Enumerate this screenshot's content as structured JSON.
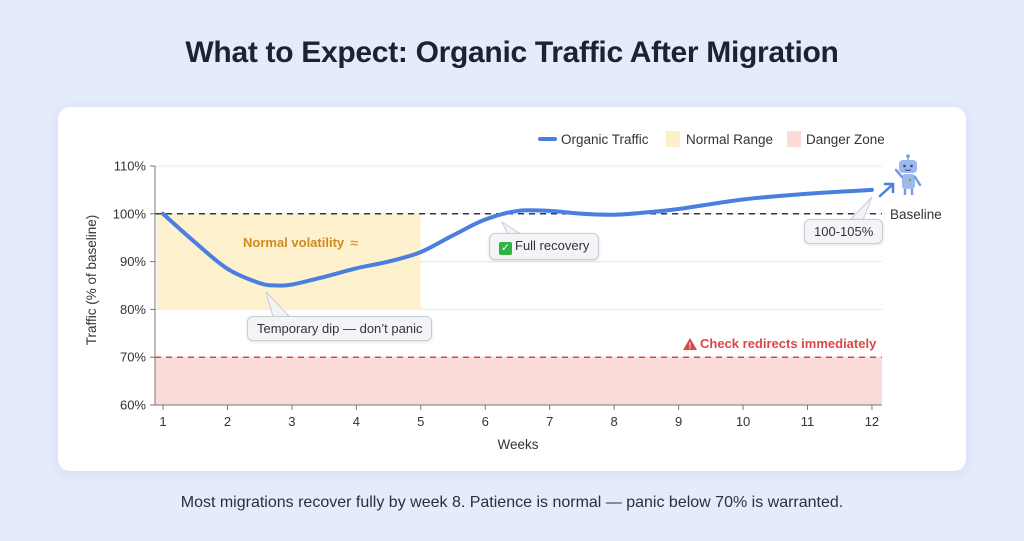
{
  "title": "What to Expect: Organic Traffic After Migration",
  "caption": "Most migrations recover fully by week 8. Patience is normal — panic below 70% is warranted.",
  "colors": {
    "line": "#4a7fe0",
    "normal_range": "#fdf0c9",
    "danger_zone": "#fbdada",
    "danger_line": "#d94848",
    "baseline": "#2f3a4d",
    "normal_label": "#d08a1e"
  },
  "chart_data": {
    "type": "line",
    "title": "What to Expect: Organic Traffic After Migration",
    "xlabel": "Weeks",
    "ylabel": "Traffic (% of baseline)",
    "x_ticks": [
      "1",
      "2",
      "3",
      "4",
      "5",
      "6",
      "7",
      "8",
      "9",
      "10",
      "11",
      "12"
    ],
    "y_ticks": [
      "60%",
      "70%",
      "80%",
      "90%",
      "100%",
      "110%"
    ],
    "xlim": [
      0.9,
      12.1
    ],
    "ylim": [
      60,
      110
    ],
    "grid": "horizontal",
    "legend_position": "top-right",
    "legend": [
      "Organic Traffic",
      "Normal Range",
      "Danger Zone"
    ],
    "series": [
      {
        "name": "Organic Traffic",
        "x": [
          1,
          1.5,
          2,
          2.5,
          2.75,
          3,
          3.5,
          4,
          4.5,
          5,
          5.5,
          6,
          6.5,
          7,
          7.5,
          8,
          8.5,
          9,
          10,
          11,
          12
        ],
        "values": [
          100,
          94,
          88.5,
          85.5,
          85,
          85.2,
          86.8,
          88.6,
          90,
          92,
          95.5,
          98.8,
          100.6,
          100.6,
          100,
          99.8,
          100.3,
          101,
          103,
          104.2,
          105
        ]
      }
    ],
    "bands": [
      {
        "name": "Normal Range",
        "x_range": [
          1,
          5
        ],
        "y_range": [
          80,
          100
        ]
      },
      {
        "name": "Danger Zone",
        "x_range": [
          1,
          12
        ],
        "y_range": [
          60,
          70
        ]
      }
    ],
    "reference_lines": [
      {
        "name": "Baseline",
        "y": 100,
        "style": "dashed"
      },
      {
        "name": "Danger threshold",
        "y": 70,
        "style": "dashed"
      }
    ],
    "annotations": [
      {
        "text": "Normal volatility ≈",
        "x": 3,
        "y": 95
      },
      {
        "text": "Temporary dip — don’t panic",
        "x": 2.6,
        "y": 85
      },
      {
        "text": "Full recovery",
        "x": 6.5,
        "y": 100.5
      },
      {
        "text": "100-105%",
        "x": 12,
        "y": 105
      },
      {
        "text": "Baseline",
        "x": 12,
        "y": 100
      },
      {
        "text": "Check redirects immediately",
        "x": 10.5,
        "y": 70
      }
    ]
  },
  "annotations": {
    "normal_volatility": "Normal volatility",
    "approx_symbol": "≈",
    "temporary_dip": "Temporary dip — don’t panic",
    "full_recovery": "Full recovery",
    "range_label": "100-105%",
    "baseline": "Baseline",
    "check_redirects": "Check redirects immediately",
    "warning_glyph": "▲",
    "check_glyph": "✓"
  }
}
